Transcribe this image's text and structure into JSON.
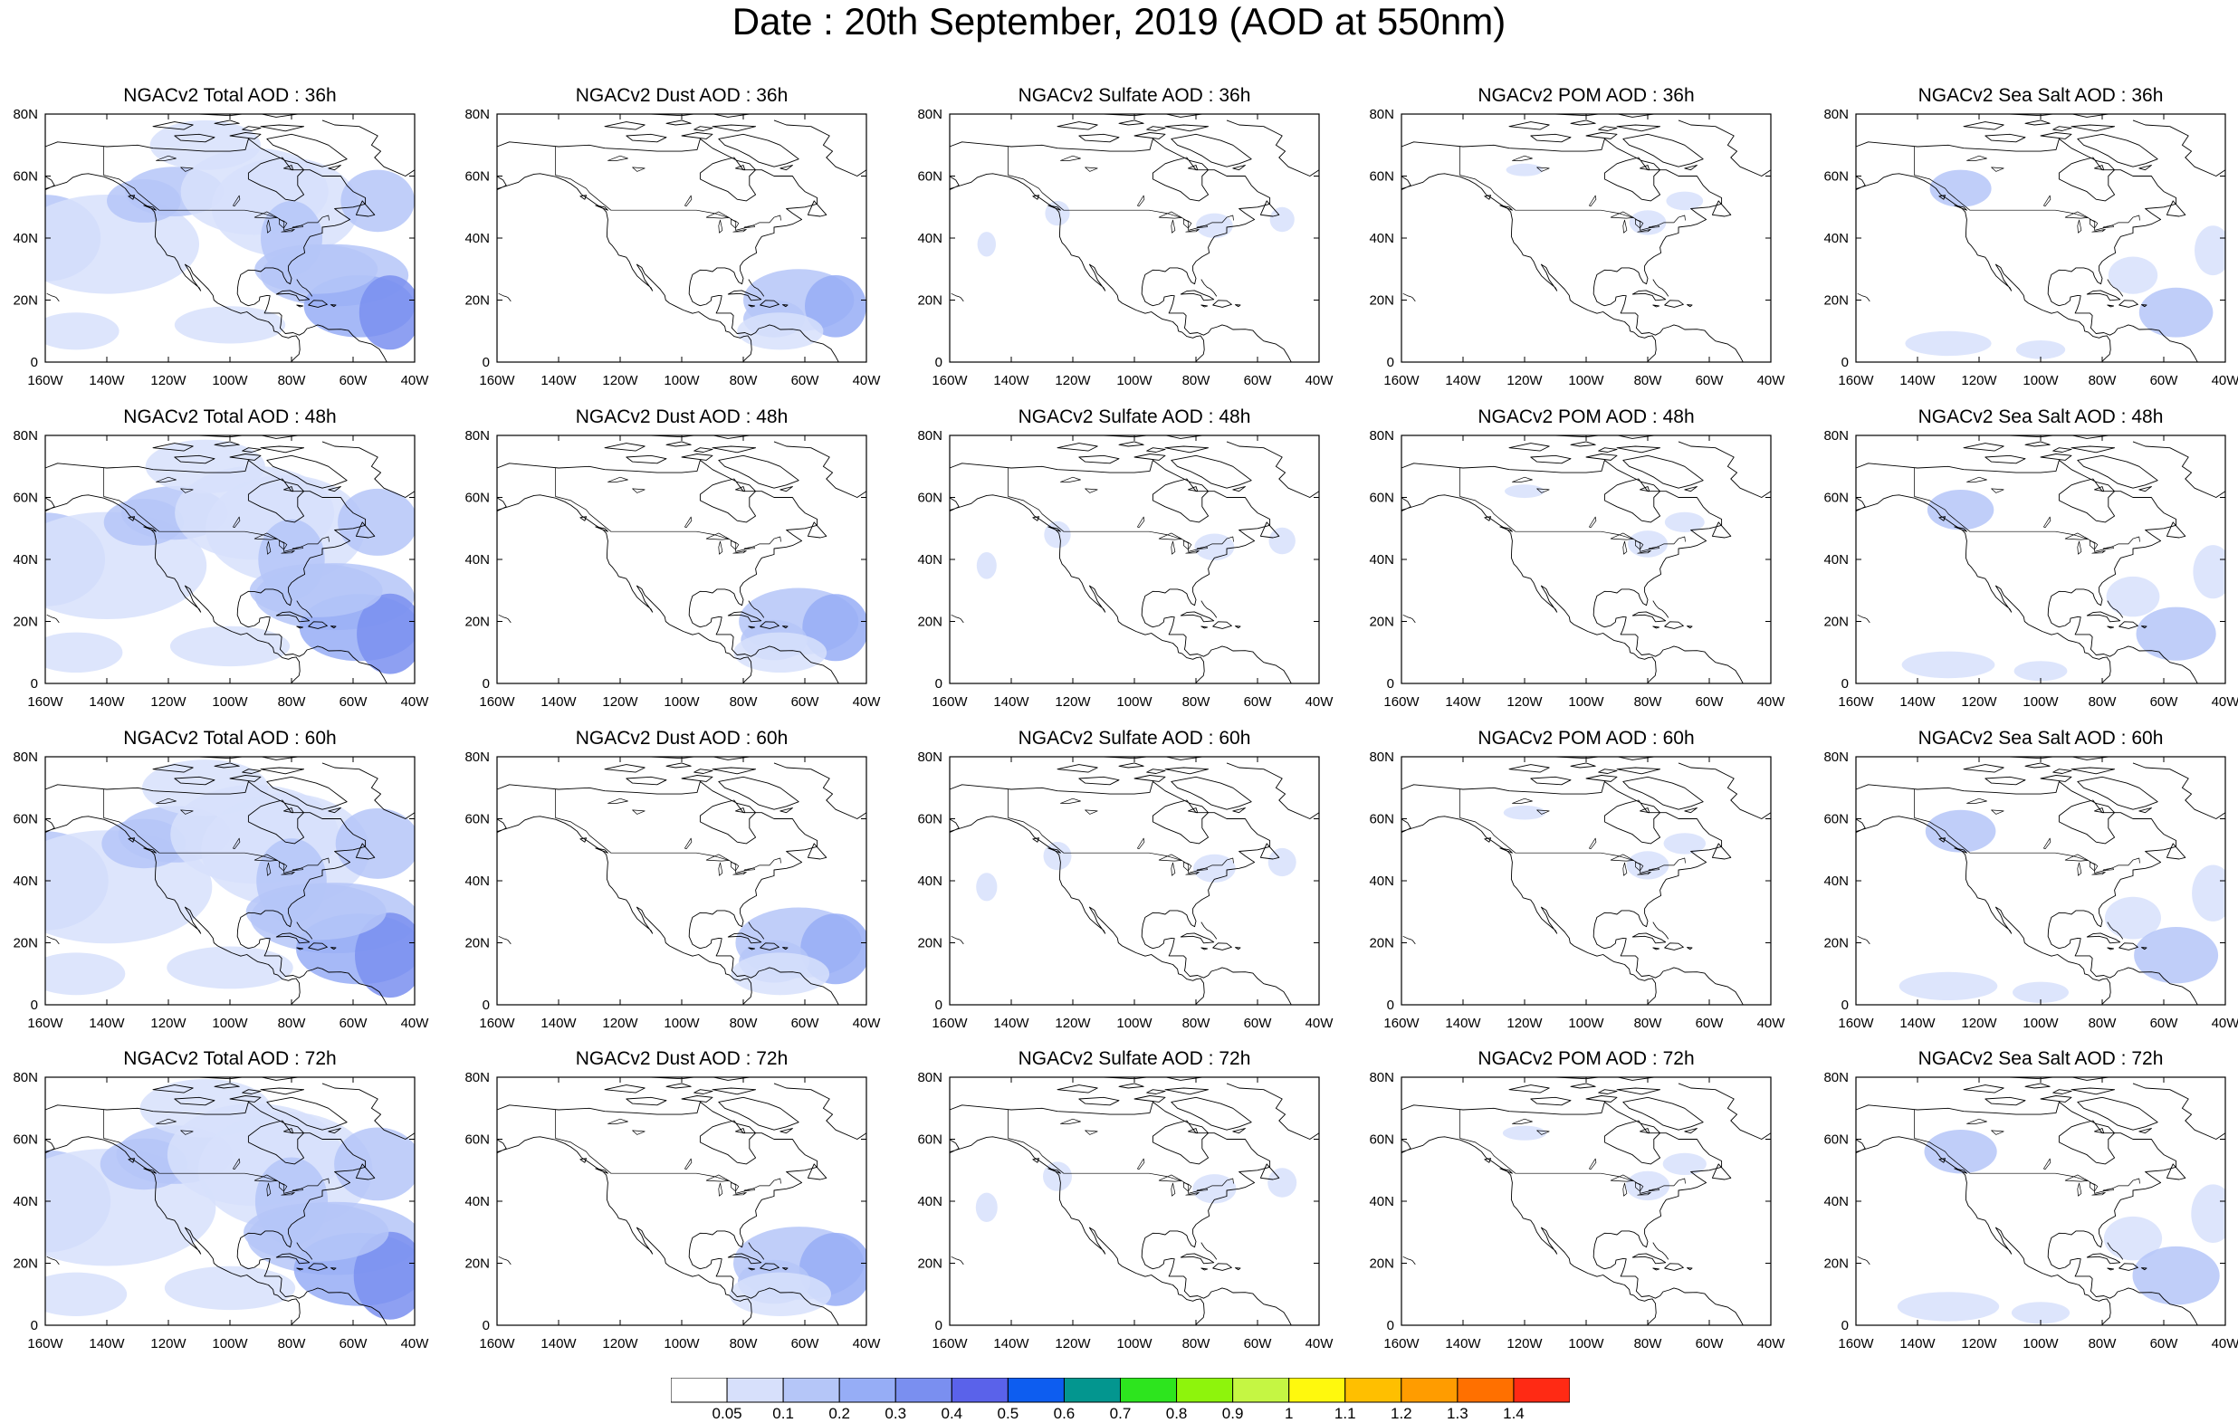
{
  "title": "Date : 20th September, 2019 (AOD at 550nm)",
  "panels": [
    {
      "title": "NGACv2 Total AOD : 36h",
      "species": "total",
      "hour": 36
    },
    {
      "title": "NGACv2 Dust AOD : 36h",
      "species": "dust",
      "hour": 36
    },
    {
      "title": "NGACv2 Sulfate AOD : 36h",
      "species": "sulfate",
      "hour": 36
    },
    {
      "title": "NGACv2 POM AOD : 36h",
      "species": "pom",
      "hour": 36
    },
    {
      "title": "NGACv2 Sea Salt AOD : 36h",
      "species": "seasalt",
      "hour": 36
    },
    {
      "title": "NGACv2 Total AOD : 48h",
      "species": "total",
      "hour": 48
    },
    {
      "title": "NGACv2 Dust AOD : 48h",
      "species": "dust",
      "hour": 48
    },
    {
      "title": "NGACv2 Sulfate AOD : 48h",
      "species": "sulfate",
      "hour": 48
    },
    {
      "title": "NGACv2 POM AOD : 48h",
      "species": "pom",
      "hour": 48
    },
    {
      "title": "NGACv2 Sea Salt AOD : 48h",
      "species": "seasalt",
      "hour": 48
    },
    {
      "title": "NGACv2 Total AOD : 60h",
      "species": "total",
      "hour": 60
    },
    {
      "title": "NGACv2 Dust AOD : 60h",
      "species": "dust",
      "hour": 60
    },
    {
      "title": "NGACv2 Sulfate AOD : 60h",
      "species": "sulfate",
      "hour": 60
    },
    {
      "title": "NGACv2 POM AOD : 60h",
      "species": "pom",
      "hour": 60
    },
    {
      "title": "NGACv2 Sea Salt AOD : 60h",
      "species": "seasalt",
      "hour": 60
    },
    {
      "title": "NGACv2 Total AOD : 72h",
      "species": "total",
      "hour": 72
    },
    {
      "title": "NGACv2 Dust AOD : 72h",
      "species": "dust",
      "hour": 72
    },
    {
      "title": "NGACv2 Sulfate AOD : 72h",
      "species": "sulfate",
      "hour": 72
    },
    {
      "title": "NGACv2 POM AOD : 72h",
      "species": "pom",
      "hour": 72
    },
    {
      "title": "NGACv2 Sea Salt  AOD : 72h",
      "species": "seasalt",
      "hour": 72
    }
  ],
  "map_axes": {
    "lon_labels": [
      "160W",
      "140W",
      "120W",
      "100W",
      "80W",
      "60W",
      "40W"
    ],
    "lat_labels": [
      "0",
      "20N",
      "40N",
      "60N",
      "80N"
    ],
    "lon_range": [
      -160,
      -40
    ],
    "lat_range": [
      0,
      80
    ]
  },
  "colorbar": {
    "levels": [
      "0.05",
      "0.1",
      "0.2",
      "0.3",
      "0.4",
      "0.5",
      "0.6",
      "0.7",
      "0.8",
      "0.9",
      "1",
      "1.1",
      "1.2",
      "1.3",
      "1.4"
    ],
    "colors": [
      "#ffffff",
      "#d7e0fb",
      "#b5c6f8",
      "#96adf6",
      "#7a8ff0",
      "#5a62ea",
      "#0d5df0",
      "#03968f",
      "#2de51e",
      "#8ef40c",
      "#c5f643",
      "#fff90d",
      "#ffbf00",
      "#ff9c00",
      "#ff7000",
      "#ff2a14"
    ]
  }
}
